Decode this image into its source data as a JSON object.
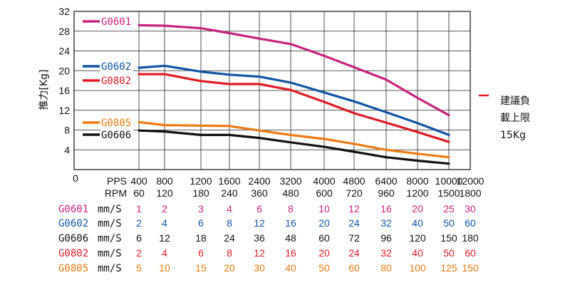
{
  "chart_data": {
    "type": "line",
    "ylabel": "推力[Kg]",
    "ylim": [
      0,
      32
    ],
    "yticks": [
      4,
      8,
      12,
      16,
      20,
      24,
      28,
      32
    ],
    "y_zero_label": "0",
    "grid": true,
    "x_axis_pps_label": "PPS",
    "x_axis_rpm_label": "RPM",
    "x_pps": [
      "400",
      "800",
      "1200",
      "1600",
      "2400",
      "3200",
      "4000",
      "4800",
      "6400",
      "8000",
      "10000",
      "12000"
    ],
    "x_rpm": [
      "60",
      "120",
      "180",
      "240",
      "360",
      "480",
      "600",
      "720",
      "960",
      "1200",
      "1500",
      "1800"
    ],
    "series": [
      {
        "name": "G0601",
        "color": "#c8237f",
        "values": [
          29.2,
          29.1,
          28.6,
          27.6,
          26.5,
          25.4,
          23.0,
          20.7,
          18.2,
          14.5,
          11.0
        ]
      },
      {
        "name": "G0602",
        "color": "#1155a5",
        "values": [
          20.6,
          21.0,
          19.8,
          19.2,
          18.8,
          17.6,
          15.6,
          13.8,
          11.6,
          9.4,
          7.0
        ]
      },
      {
        "name": "G0802",
        "color": "#e01b24",
        "values": [
          19.3,
          19.3,
          17.9,
          17.3,
          17.3,
          16.1,
          13.7,
          11.4,
          9.5,
          7.6,
          5.6
        ]
      },
      {
        "name": "G0805",
        "color": "#ee7a14",
        "values": [
          9.6,
          9.0,
          8.9,
          8.8,
          7.9,
          7.0,
          6.2,
          5.2,
          4.0,
          3.2,
          2.5
        ]
      },
      {
        "name": "G0606",
        "color": "#111111",
        "values": [
          7.9,
          7.7,
          7.0,
          7.0,
          6.4,
          5.5,
          4.6,
          3.6,
          2.5,
          1.8,
          1.2
        ]
      }
    ],
    "annotation": {
      "lines": [
        "建議負",
        "載上限",
        "15Kg"
      ],
      "value": 15,
      "color": "#e01b24"
    }
  },
  "table": {
    "rows": [
      {
        "name": "G0601",
        "unit": "mm/S",
        "color": "#c8237f",
        "values": [
          "1",
          "2",
          "3",
          "4",
          "6",
          "8",
          "10",
          "12",
          "16",
          "20",
          "25",
          "30"
        ]
      },
      {
        "name": "G0602",
        "unit": "mm/S",
        "color": "#1155a5",
        "values": [
          "2",
          "4",
          "6",
          "8",
          "12",
          "16",
          "20",
          "24",
          "32",
          "40",
          "50",
          "60"
        ]
      },
      {
        "name": "G0606",
        "unit": "mm/S",
        "color": "#111111",
        "values": [
          "6",
          "12",
          "18",
          "24",
          "36",
          "48",
          "60",
          "72",
          "96",
          "120",
          "150",
          "180"
        ]
      },
      {
        "name": "G0802",
        "unit": "mm/S",
        "color": "#e01b24",
        "values": [
          "2",
          "4",
          "6",
          "8",
          "12",
          "16",
          "20",
          "24",
          "32",
          "40",
          "50",
          "60"
        ]
      },
      {
        "name": "G0805",
        "unit": "mm/S",
        "color": "#ee7a14",
        "values": [
          "5",
          "10",
          "15",
          "20",
          "30",
          "40",
          "50",
          "60",
          "80",
          "100",
          "125",
          "150"
        ]
      }
    ]
  }
}
